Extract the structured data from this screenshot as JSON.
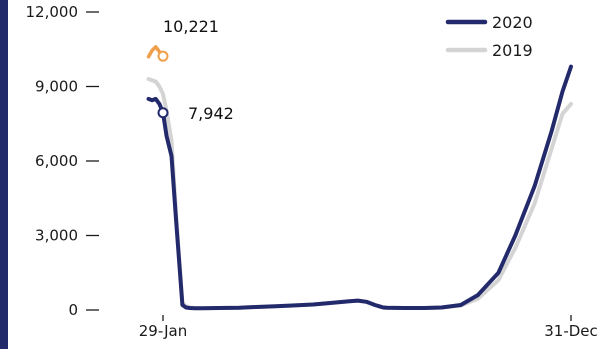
{
  "chart_data": {
    "type": "line",
    "x_axis": {
      "tick_labels": [
        "29-Jan",
        "31-Dec"
      ]
    },
    "y_axis": {
      "tick_labels": [
        "0",
        "3,000",
        "6,000",
        "9,000",
        "12,000"
      ],
      "ticks": [
        0,
        3000,
        6000,
        9000,
        12000
      ],
      "ylim": [
        0,
        12000
      ]
    },
    "grid": false,
    "legend": {
      "placement": "top-right",
      "items": [
        "2020",
        "2019"
      ]
    },
    "colors": {
      "2020": "#232a6b",
      "2019": "#d4d4d4",
      "highlight": "#f0a04b",
      "axis": "#232a6b"
    },
    "series": [
      {
        "name": "2020",
        "x": [
          "17-Jan",
          "20-Jan",
          "23-Jan",
          "26-Jan",
          "29-Jan",
          "1-Feb",
          "5-Feb",
          "9-Feb",
          "14-Feb",
          "17-Feb",
          "20-Feb",
          "24-Feb",
          "1-Mar",
          "15-Mar",
          "1-Apr",
          "15-Apr",
          "1-May",
          "15-May",
          "1-Jun",
          "15-Jun",
          "1-Jul",
          "8-Jul",
          "15-Jul",
          "22-Jul",
          "29-Jul",
          "1-Aug",
          "15-Aug",
          "1-Sep",
          "15-Sep",
          "1-Oct",
          "15-Oct",
          "1-Nov",
          "15-Nov",
          "1-Dec",
          "15-Dec",
          "24-Dec",
          "31-Dec"
        ],
        "values": [
          8500,
          8450,
          8500,
          8300,
          7942,
          7000,
          6200,
          3500,
          200,
          100,
          80,
          70,
          70,
          80,
          90,
          120,
          150,
          180,
          220,
          280,
          350,
          380,
          330,
          200,
          100,
          90,
          80,
          80,
          100,
          200,
          600,
          1500,
          3000,
          5000,
          7200,
          8800,
          9800
        ]
      },
      {
        "name": "2019",
        "x": [
          "17-Jan",
          "20-Jan",
          "23-Jan",
          "26-Jan",
          "29-Jan",
          "1-Feb",
          "5-Feb",
          "9-Feb",
          "14-Feb",
          "17-Feb",
          "20-Feb",
          "24-Feb",
          "1-Mar",
          "15-Mar",
          "1-Apr",
          "15-Apr",
          "1-May",
          "15-May",
          "1-Jun",
          "15-Jun",
          "1-Jul",
          "8-Jul",
          "15-Jul",
          "22-Jul",
          "29-Jul",
          "1-Aug",
          "15-Aug",
          "1-Sep",
          "15-Sep",
          "1-Oct",
          "15-Oct",
          "1-Nov",
          "15-Nov",
          "1-Dec",
          "15-Dec",
          "24-Dec",
          "31-Dec"
        ],
        "values": [
          9300,
          9250,
          9200,
          9000,
          8700,
          8000,
          6800,
          3700,
          300,
          150,
          100,
          80,
          70,
          80,
          90,
          120,
          150,
          180,
          220,
          280,
          350,
          380,
          330,
          200,
          100,
          90,
          80,
          80,
          100,
          180,
          450,
          1200,
          2500,
          4300,
          6500,
          7900,
          8300
        ]
      },
      {
        "name": "highlight",
        "x": [
          "17-Jan",
          "20-Jan",
          "23-Jan",
          "26-Jan",
          "29-Jan"
        ],
        "values": [
          10200,
          10450,
          10600,
          10400,
          10221
        ]
      }
    ],
    "annotations": [
      {
        "text": "10,221",
        "x": "29-Jan",
        "y": 10221,
        "series": "highlight"
      },
      {
        "text": "7,942",
        "x": "29-Jan",
        "y": 7942,
        "series": "2020"
      }
    ]
  }
}
